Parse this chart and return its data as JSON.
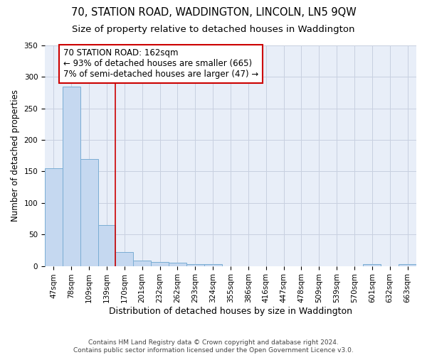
{
  "title": "70, STATION ROAD, WADDINGTON, LINCOLN, LN5 9QW",
  "subtitle": "Size of property relative to detached houses in Waddington",
  "xlabel": "Distribution of detached houses by size in Waddington",
  "ylabel": "Number of detached properties",
  "bin_labels": [
    "47sqm",
    "78sqm",
    "109sqm",
    "139sqm",
    "170sqm",
    "201sqm",
    "232sqm",
    "262sqm",
    "293sqm",
    "324sqm",
    "355sqm",
    "386sqm",
    "416sqm",
    "447sqm",
    "478sqm",
    "509sqm",
    "539sqm",
    "570sqm",
    "601sqm",
    "632sqm",
    "663sqm"
  ],
  "bin_values": [
    155,
    285,
    170,
    65,
    22,
    9,
    6,
    5,
    3,
    3,
    0,
    0,
    0,
    0,
    0,
    0,
    0,
    0,
    3,
    0,
    3
  ],
  "bar_color": "#c5d8f0",
  "bar_edge_color": "#7aadd4",
  "bar_linewidth": 0.7,
  "red_line_x": 4.0,
  "red_line_color": "#cc0000",
  "annotation_box_text": "70 STATION ROAD: 162sqm\n← 93% of detached houses are smaller (665)\n7% of semi-detached houses are larger (47) →",
  "title_fontsize": 10.5,
  "subtitle_fontsize": 9.5,
  "xlabel_fontsize": 9,
  "ylabel_fontsize": 8.5,
  "tick_fontsize": 7.5,
  "annotation_fontsize": 8.5,
  "background_color": "#e8eef8",
  "grid_color": "#c8d0e0",
  "footer": "Contains HM Land Registry data © Crown copyright and database right 2024.\nContains public sector information licensed under the Open Government Licence v3.0.",
  "ylim": [
    0,
    350
  ],
  "yticks": [
    0,
    50,
    100,
    150,
    200,
    250,
    300,
    350
  ]
}
